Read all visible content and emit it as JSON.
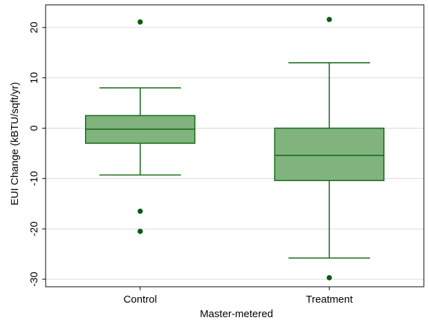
{
  "chart_data": {
    "type": "box",
    "xlabel": "Master-metered",
    "ylabel": "EUI Change (kBTU/sqft/yr)",
    "ylim": [
      -31.5,
      24.5
    ],
    "yticks": [
      -30,
      -20,
      -10,
      0,
      10,
      20
    ],
    "grid": true,
    "categories": [
      "Control",
      "Treatment"
    ],
    "boxes": [
      {
        "name": "Control",
        "whisker_low": -9.3,
        "q1": -3.0,
        "median": -0.2,
        "q3": 2.5,
        "whisker_high": 8.0,
        "outliers": [
          21.1,
          -16.5,
          -20.5
        ]
      },
      {
        "name": "Treatment",
        "whisker_low": -25.8,
        "q1": -10.4,
        "median": -5.4,
        "q3": 0.0,
        "whisker_high": 13.0,
        "outliers": [
          21.6,
          -29.7
        ]
      }
    ],
    "colors": {
      "box_fill": "#80b37d",
      "box_stroke": "#1a6b1a",
      "outlier": "#0d5c0d",
      "grid": "#d9d9d9",
      "axis": "#000000"
    }
  }
}
